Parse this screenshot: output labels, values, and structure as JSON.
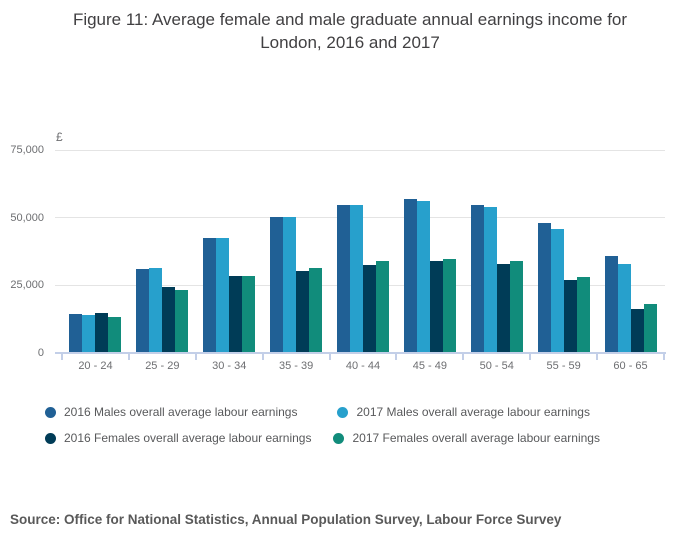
{
  "title": "Figure 11: Average female and male graduate annual earnings income for London, 2016 and 2017",
  "y_axis": {
    "unit": "£",
    "tick_values": [
      0,
      25000,
      50000,
      75000
    ],
    "tick_labels": [
      "0",
      "25,000",
      "50,000",
      "75,000"
    ]
  },
  "chart_data": {
    "type": "bar",
    "title": "Figure 11: Average female and male graduate annual earnings income for London, 2016 and 2017",
    "xlabel": "",
    "ylabel": "£",
    "ylim": [
      0,
      75000
    ],
    "grid": true,
    "legend_position": "bottom",
    "categories": [
      "20 - 24",
      "25 - 29",
      "30 - 34",
      "35 - 39",
      "40 - 44",
      "45 - 49",
      "50 - 54",
      "55 - 59",
      "60 - 65"
    ],
    "series": [
      {
        "name": "2016 Males overall average labour earnings",
        "color": "#206095",
        "values": [
          14500,
          31000,
          42500,
          50500,
          55000,
          57000,
          55000,
          48000,
          36000
        ]
      },
      {
        "name": "2017 Males overall average labour earnings",
        "color": "#27a0cc",
        "values": [
          14000,
          31500,
          42500,
          50500,
          55000,
          56500,
          54000,
          46000,
          33000
        ]
      },
      {
        "name": "2016 Females overall average labour earnings",
        "color": "#003c57",
        "values": [
          15000,
          24500,
          28500,
          30500,
          32500,
          34000,
          33000,
          27000,
          16500
        ]
      },
      {
        "name": "2017 Females overall average labour earnings",
        "color": "#118c7b",
        "values": [
          13500,
          23500,
          28500,
          31500,
          34000,
          35000,
          34000,
          28000,
          18000
        ]
      }
    ],
    "legend_rows": [
      [
        0,
        1
      ],
      [
        2,
        3
      ]
    ]
  },
  "source": "Source: Office for National Statistics, Annual Population Survey, Labour Force Survey"
}
